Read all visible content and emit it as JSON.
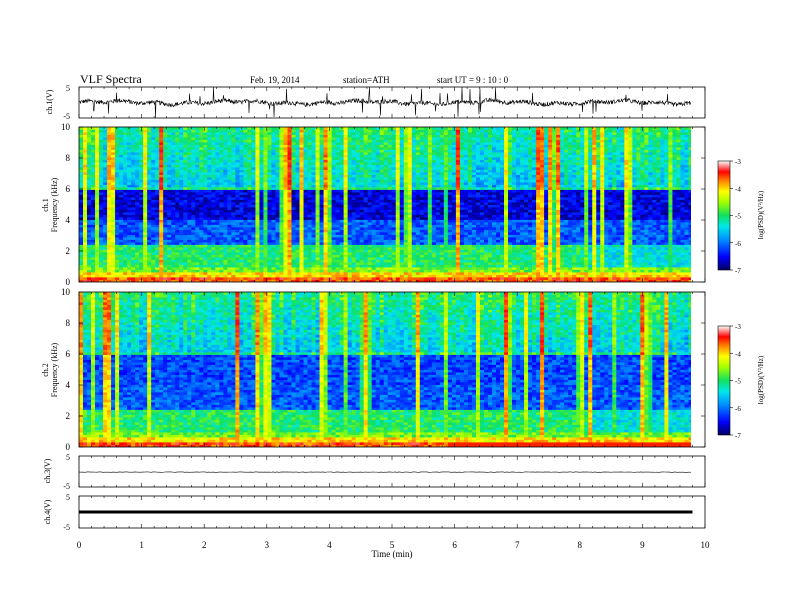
{
  "header": {
    "title": "VLF  Spectra",
    "date": "Feb. 19, 2014",
    "station": "station=ATH",
    "start": "start  UT  =   9  : 10 : 0"
  },
  "chart_data": [
    {
      "type": "line",
      "id": "ch1",
      "ylabel": "ch.1(V)",
      "ylim": [
        -5,
        5
      ],
      "yticks": [
        "5",
        "-5"
      ],
      "description_values": "waveform fluctuating around 0 V with spikes near ±5 V"
    },
    {
      "type": "heatmap",
      "id": "spec1",
      "ylabel": [
        "ch.1",
        "Frequency  (kHz)"
      ],
      "ylim": [
        0,
        10
      ],
      "yticks": [
        "0",
        "2",
        "4",
        "6",
        "8",
        "10"
      ],
      "colorbar": {
        "label": "log(PSD)(V²/Hz)",
        "ticks": [
          "-3",
          "-4",
          "-5",
          "-6",
          "-7"
        ],
        "range": [
          -7,
          -3
        ],
        "colormap": [
          "#000080",
          "#0000ff",
          "#0080ff",
          "#00e0ff",
          "#20e070",
          "#80ff00",
          "#ffff00",
          "#ff8000",
          "#ff0000",
          "#ffffff"
        ]
      }
    },
    {
      "type": "heatmap",
      "id": "spec2",
      "ylabel": [
        "ch.2",
        "Frequency  (kHz)"
      ],
      "ylim": [
        0,
        10
      ],
      "yticks": [
        "0",
        "2",
        "4",
        "6",
        "8",
        "10"
      ],
      "colorbar": {
        "label": "log(PSD)(V²/Hz)",
        "ticks": [
          "-3",
          "-4",
          "-5",
          "-6",
          "-7"
        ],
        "range": [
          -7,
          -3
        ]
      }
    },
    {
      "type": "line",
      "id": "ch3",
      "ylabel": "ch.3(V)",
      "ylim": [
        -5,
        5
      ],
      "yticks": [
        "5",
        "-5"
      ]
    },
    {
      "type": "line",
      "id": "ch4",
      "ylabel": "ch.4(V)",
      "ylim": [
        -5,
        5
      ],
      "yticks": [
        "5",
        "-5"
      ]
    }
  ],
  "xaxis": {
    "label": "Time  (min)",
    "range": [
      0,
      10
    ],
    "ticks": [
      "0",
      "1",
      "2",
      "3",
      "4",
      "5",
      "6",
      "7",
      "8",
      "9",
      "10"
    ],
    "data_end": 9.8
  }
}
